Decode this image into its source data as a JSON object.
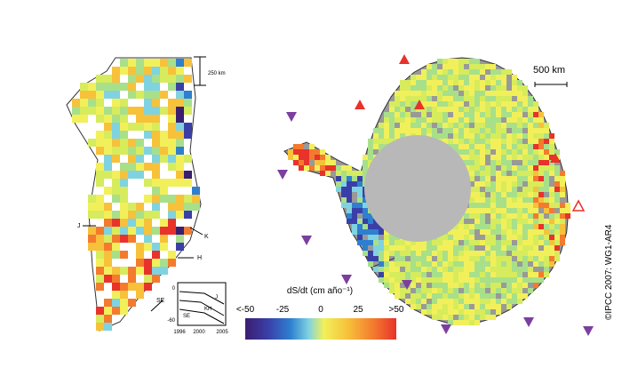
{
  "greenland": {
    "scale_label": "250 km",
    "labels": [
      "J",
      "K",
      "H",
      "SE"
    ],
    "inset": {
      "yticks": [
        "0",
        "-60"
      ],
      "xticks": [
        "1996",
        "2000",
        "2005"
      ],
      "series_labels": [
        "J",
        "KH",
        "SE"
      ]
    }
  },
  "antarctica": {
    "scale_label": "500 km"
  },
  "colorbar": {
    "title": "dS/dt (cm año⁻¹)",
    "ticks": [
      "<-50",
      "-25",
      "0",
      "25",
      ">50"
    ]
  },
  "credit": "©IPCC 2007: WG1-AR4"
}
